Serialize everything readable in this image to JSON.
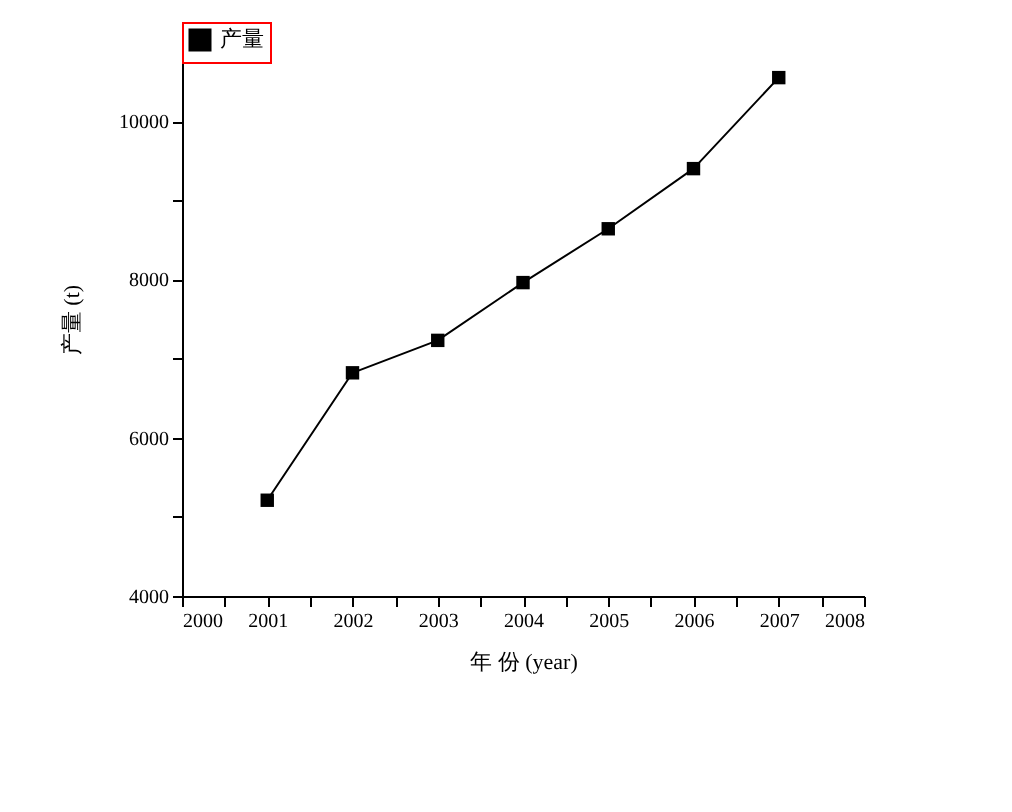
{
  "chart_data": {
    "type": "line",
    "xlabel": "年 份 (year)",
    "ylabel": "产量 (t)",
    "x": [
      2001,
      2002,
      2003,
      2004,
      2005,
      2006,
      2007
    ],
    "series": [
      {
        "name": "产量",
        "color": "#000000",
        "values": [
          5210,
          6820,
          7230,
          7960,
          8640,
          9400,
          10550
        ]
      }
    ],
    "xlim": [
      2000,
      2008
    ],
    "xticks": [
      2000,
      {
        "value": 2000.5,
        "label": null
      },
      2001,
      {
        "value": 2001.5,
        "label": null
      },
      2002,
      {
        "value": 2002.5,
        "label": null
      },
      2003,
      {
        "value": 2003.5,
        "label": null
      },
      2004,
      {
        "value": 2004.5,
        "label": null
      },
      2005,
      {
        "value": 2005.5,
        "label": null
      },
      2006,
      {
        "value": 2006.5,
        "label": null
      },
      2007,
      {
        "value": 2007.5,
        "label": null
      },
      2008
    ],
    "ylim": [
      4000,
      11000
    ],
    "yticks": [
      4000,
      {
        "value": 5000,
        "label": null
      },
      6000,
      {
        "value": 7000,
        "label": null
      },
      8000,
      {
        "value": 9000,
        "label": null
      },
      10000
    ],
    "grid": false,
    "legend": "top",
    "marker": "square",
    "line_style": "solid"
  }
}
